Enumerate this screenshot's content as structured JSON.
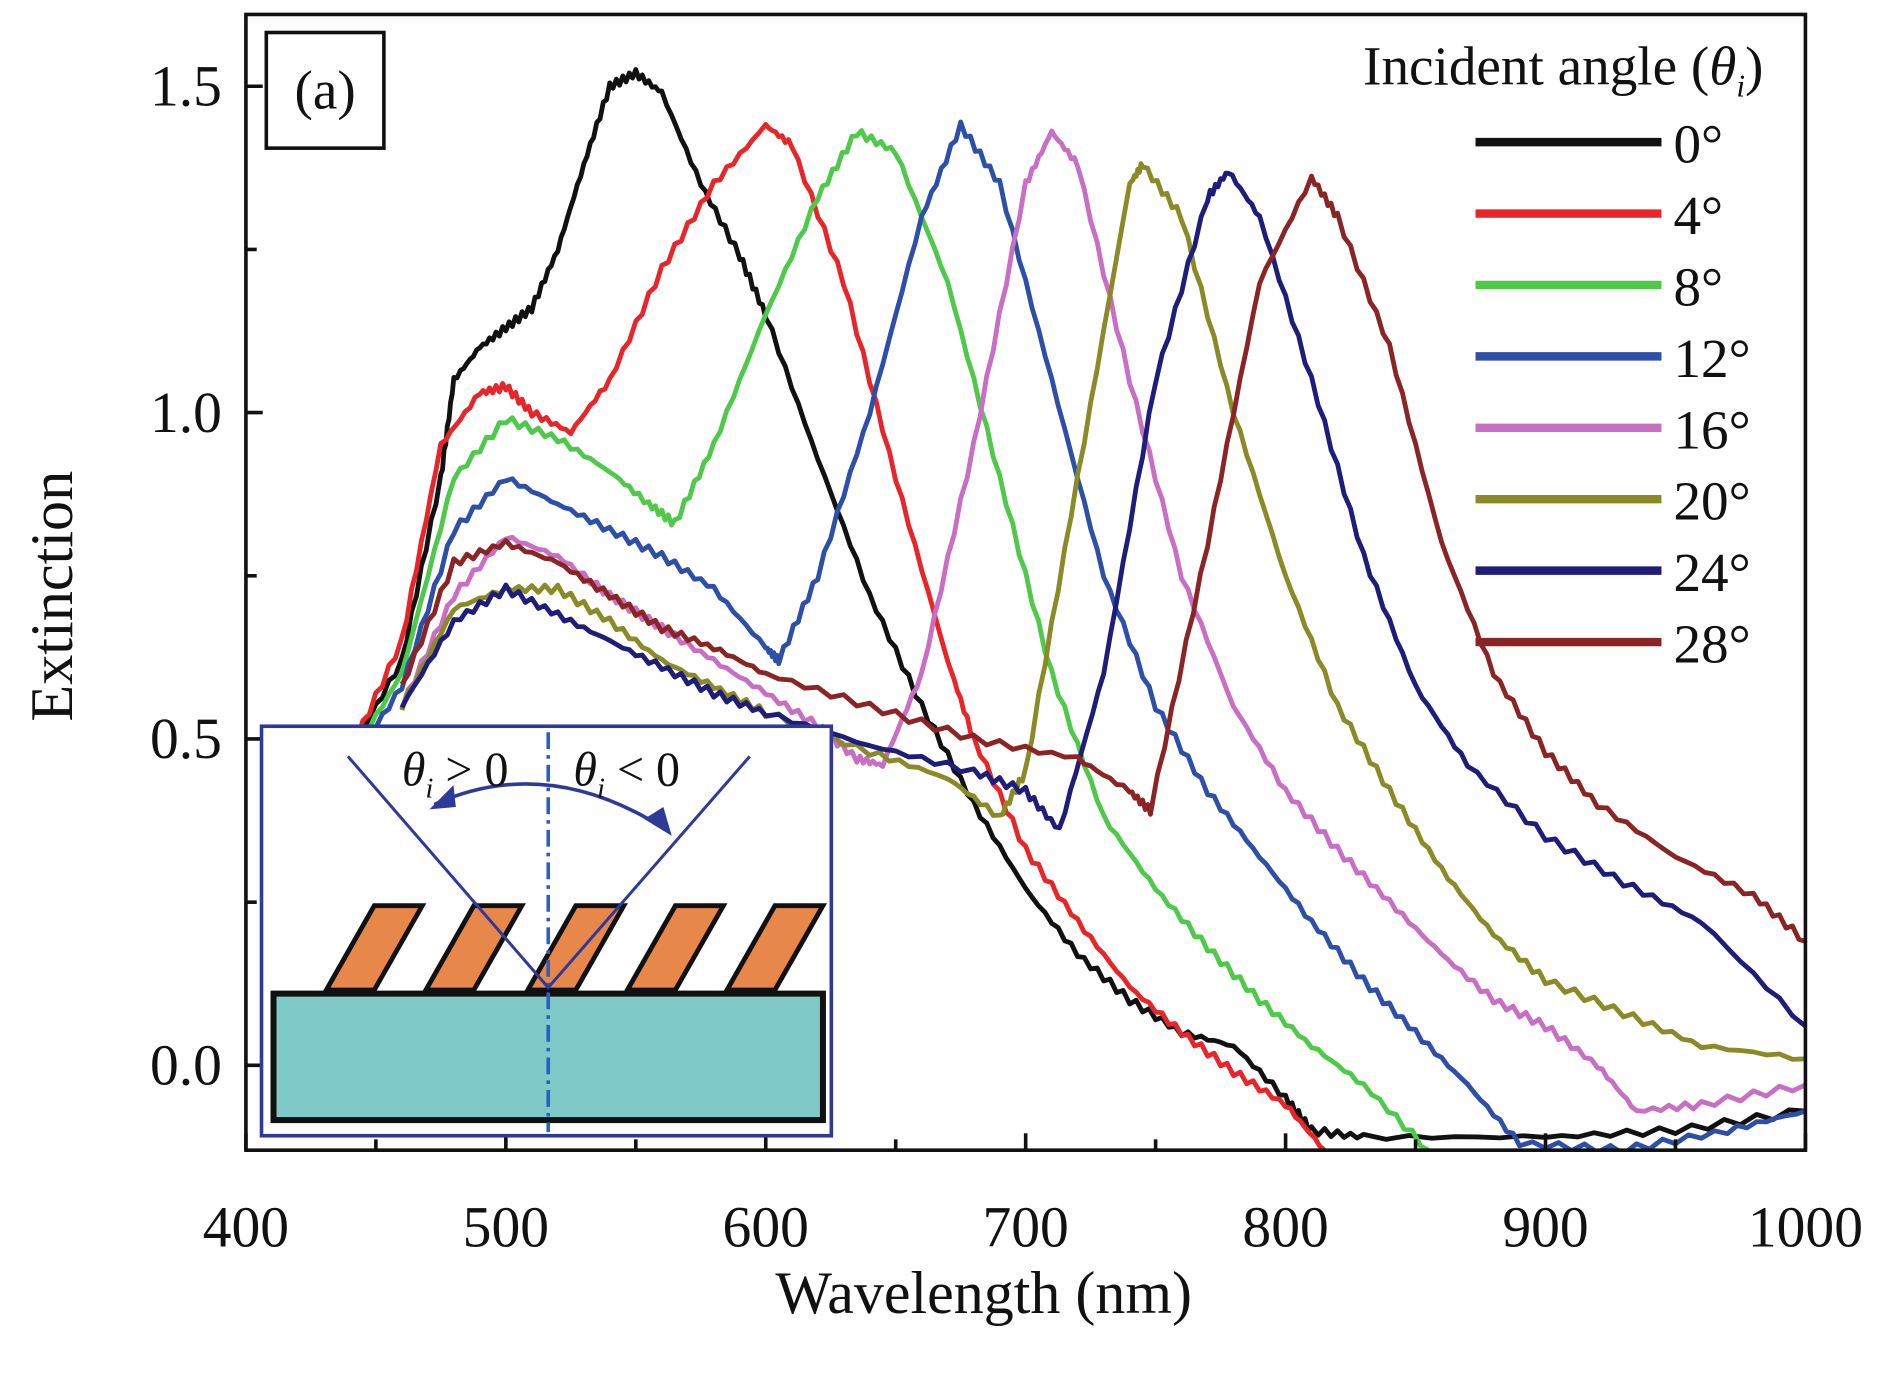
{
  "chart_data": {
    "type": "line",
    "panel_label": "(a)",
    "xlabel": "Wavelength (nm)",
    "ylabel": "Extinction",
    "xlim": [
      400,
      1000
    ],
    "ylim": [
      -0.13,
      1.61
    ],
    "xticks": [
      "400",
      "500",
      "600",
      "700",
      "800",
      "900",
      "1000"
    ],
    "yticks": [
      "0.0",
      "0.5",
      "1.0",
      "1.5"
    ],
    "grid": false,
    "legend": {
      "title": "Incident angle (",
      "title_symbol": "θ",
      "title_sub": "i",
      "title_end": ")",
      "placement": "top-right"
    },
    "series": [
      {
        "name": "0°",
        "color": "#111111",
        "x": [
          440,
          460,
          475,
          480,
          490,
          500,
          510,
          520,
          530,
          540,
          550,
          560,
          575,
          590,
          600,
          620,
          640,
          660,
          680,
          700,
          720,
          740,
          760,
          780,
          800,
          810,
          830,
          900,
          950,
          1000
        ],
        "y": [
          0.48,
          0.62,
          0.9,
          1.05,
          1.1,
          1.13,
          1.16,
          1.25,
          1.38,
          1.5,
          1.52,
          1.49,
          1.35,
          1.24,
          1.15,
          0.93,
          0.72,
          0.55,
          0.4,
          0.27,
          0.17,
          0.1,
          0.05,
          0.03,
          -0.05,
          -0.1,
          -0.11,
          -0.11,
          -0.1,
          -0.07
        ]
      },
      {
        "name": "4°",
        "color": "#e8262a",
        "x": [
          440,
          460,
          475,
          490,
          500,
          510,
          525,
          540,
          560,
          580,
          600,
          610,
          630,
          650,
          670,
          680,
          700,
          720,
          740,
          760,
          780,
          800,
          815
        ],
        "y": [
          0.48,
          0.65,
          0.95,
          1.03,
          1.04,
          1.0,
          0.97,
          1.05,
          1.22,
          1.35,
          1.44,
          1.41,
          1.2,
          0.9,
          0.62,
          0.5,
          0.33,
          0.22,
          0.12,
          0.05,
          -0.01,
          -0.06,
          -0.13
        ]
      },
      {
        "name": "8°",
        "color": "#4fc94a",
        "x": [
          440,
          460,
          480,
          500,
          520,
          540,
          555,
          565,
          580,
          600,
          620,
          635,
          650,
          670,
          690,
          710,
          730,
          750,
          770,
          790,
          810,
          830,
          855
        ],
        "y": [
          0.47,
          0.6,
          0.9,
          0.99,
          0.96,
          0.91,
          0.86,
          0.83,
          0.95,
          1.15,
          1.33,
          1.43,
          1.4,
          1.2,
          0.9,
          0.6,
          0.38,
          0.27,
          0.18,
          0.1,
          0.03,
          -0.03,
          -0.13
        ]
      },
      {
        "name": "12°",
        "color": "#2e4fa8",
        "x": [
          440,
          460,
          480,
          500,
          520,
          540,
          560,
          580,
          600,
          605,
          620,
          640,
          660,
          675,
          690,
          710,
          730,
          750,
          770,
          790,
          810,
          830,
          850,
          870,
          890,
          930,
          970,
          1000
        ],
        "y": [
          0.46,
          0.58,
          0.82,
          0.9,
          0.86,
          0.82,
          0.78,
          0.73,
          0.64,
          0.62,
          0.75,
          1.0,
          1.3,
          1.44,
          1.35,
          1.05,
          0.75,
          0.55,
          0.42,
          0.32,
          0.22,
          0.13,
          0.05,
          -0.03,
          -0.12,
          -0.13,
          -0.1,
          -0.07
        ]
      },
      {
        "name": "16°",
        "color": "#c86ec4",
        "x": [
          460,
          480,
          500,
          520,
          540,
          560,
          580,
          600,
          620,
          635,
          645,
          660,
          680,
          700,
          710,
          720,
          740,
          760,
          780,
          800,
          820,
          840,
          860,
          880,
          900,
          920,
          935,
          960,
          1000
        ],
        "y": [
          0.55,
          0.72,
          0.81,
          0.78,
          0.72,
          0.67,
          0.62,
          0.57,
          0.52,
          0.47,
          0.46,
          0.6,
          0.95,
          1.35,
          1.43,
          1.38,
          1.05,
          0.75,
          0.55,
          0.42,
          0.33,
          0.25,
          0.17,
          0.1,
          0.06,
          0.0,
          -0.07,
          -0.06,
          -0.03
        ]
      },
      {
        "name": "20°",
        "color": "#8a8a26",
        "x": [
          460,
          480,
          500,
          520,
          540,
          560,
          580,
          600,
          640,
          670,
          690,
          700,
          720,
          740,
          745,
          760,
          780,
          800,
          820,
          840,
          860,
          880,
          900,
          930,
          960,
          1000
        ],
        "y": [
          0.55,
          0.7,
          0.73,
          0.73,
          0.68,
          0.62,
          0.58,
          0.54,
          0.48,
          0.44,
          0.38,
          0.45,
          0.9,
          1.35,
          1.38,
          1.3,
          1.0,
          0.75,
          0.55,
          0.42,
          0.3,
          0.2,
          0.13,
          0.08,
          0.03,
          0.01
        ]
      },
      {
        "name": "24°",
        "color": "#1e1e7a",
        "x": [
          460,
          480,
          500,
          520,
          540,
          560,
          580,
          600,
          640,
          680,
          700,
          713,
          730,
          750,
          770,
          778,
          790,
          810,
          830,
          850,
          870,
          900,
          930,
          960,
          1000
        ],
        "y": [
          0.55,
          0.68,
          0.73,
          0.69,
          0.65,
          0.61,
          0.57,
          0.54,
          0.49,
          0.45,
          0.42,
          0.36,
          0.6,
          1.05,
          1.33,
          1.37,
          1.3,
          1.05,
          0.78,
          0.58,
          0.46,
          0.35,
          0.28,
          0.22,
          0.06
        ]
      },
      {
        "name": "28°",
        "color": "#8b2525",
        "x": [
          460,
          480,
          500,
          520,
          540,
          560,
          580,
          600,
          640,
          680,
          720,
          740,
          748,
          770,
          790,
          810,
          820,
          840,
          860,
          880,
          900,
          920,
          950,
          980,
          1000
        ],
        "y": [
          0.58,
          0.77,
          0.8,
          0.77,
          0.72,
          0.67,
          0.64,
          0.6,
          0.55,
          0.5,
          0.47,
          0.42,
          0.39,
          0.8,
          1.2,
          1.36,
          1.3,
          1.1,
          0.8,
          0.6,
          0.48,
          0.4,
          0.32,
          0.26,
          0.19
        ]
      }
    ],
    "inset": {
      "left_label": {
        "symbol": "θ",
        "sub": "i",
        "rel": " > 0"
      },
      "right_label": {
        "symbol": "θ",
        "sub": "i",
        "rel": " < 0"
      },
      "substrate_color": "#7fc9c9",
      "grating_color": "#e8874a",
      "frame_color": "#2e3a9a"
    }
  }
}
